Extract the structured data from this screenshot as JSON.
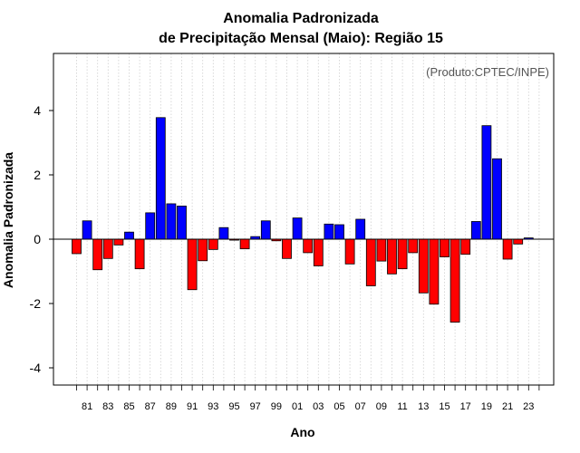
{
  "chart_data": {
    "type": "bar",
    "title": "Anomalia Padronizada",
    "subtitle": "de Precipitação Mensal (Maio): Região 15",
    "xlabel": "Ano",
    "ylabel": "Anomalia Padronizada",
    "annotation": "(Produto:CPTEC/INPE)",
    "ylim": [
      -4.6,
      5.8
    ],
    "yticks": [
      -4,
      -2,
      0,
      2,
      4
    ],
    "ytick_labels": [
      "-4",
      "-2",
      "0",
      "2",
      "4"
    ],
    "xtick_labels": [
      "81",
      "83",
      "85",
      "87",
      "89",
      "91",
      "93",
      "95",
      "97",
      "99",
      "01",
      "03",
      "05",
      "07",
      "09",
      "11",
      "13",
      "15",
      "17",
      "19",
      "21",
      "23"
    ],
    "grid": true,
    "categories": [
      "1980",
      "1981",
      "1982",
      "1983",
      "1984",
      "1985",
      "1986",
      "1987",
      "1988",
      "1989",
      "1990",
      "1991",
      "1992",
      "1993",
      "1994",
      "1995",
      "1996",
      "1997",
      "1998",
      "1999",
      "2000",
      "2001",
      "2002",
      "2003",
      "2004",
      "2005",
      "2006",
      "2007",
      "2008",
      "2009",
      "2010",
      "2011",
      "2012",
      "2013",
      "2014",
      "2015",
      "2016",
      "2017",
      "2018",
      "2019",
      "2020",
      "2021",
      "2022",
      "2023",
      "2024"
    ],
    "values": [
      -0.45,
      0.57,
      -0.95,
      -0.6,
      -0.18,
      0.22,
      -0.92,
      0.82,
      3.78,
      1.1,
      1.03,
      -1.57,
      -0.67,
      -0.32,
      0.36,
      -0.03,
      -0.3,
      0.08,
      0.57,
      -0.05,
      -0.6,
      0.66,
      -0.42,
      -0.83,
      0.47,
      0.45,
      -0.77,
      0.62,
      -1.45,
      -0.68,
      -1.08,
      -0.92,
      -0.42,
      -1.67,
      -2.02,
      -0.55,
      -2.58,
      -0.47,
      0.55,
      3.53,
      2.5,
      -0.62,
      -0.15,
      0.04,
      0.0
    ],
    "positive_color": "#0000ff",
    "negative_color": "#ff0000"
  }
}
